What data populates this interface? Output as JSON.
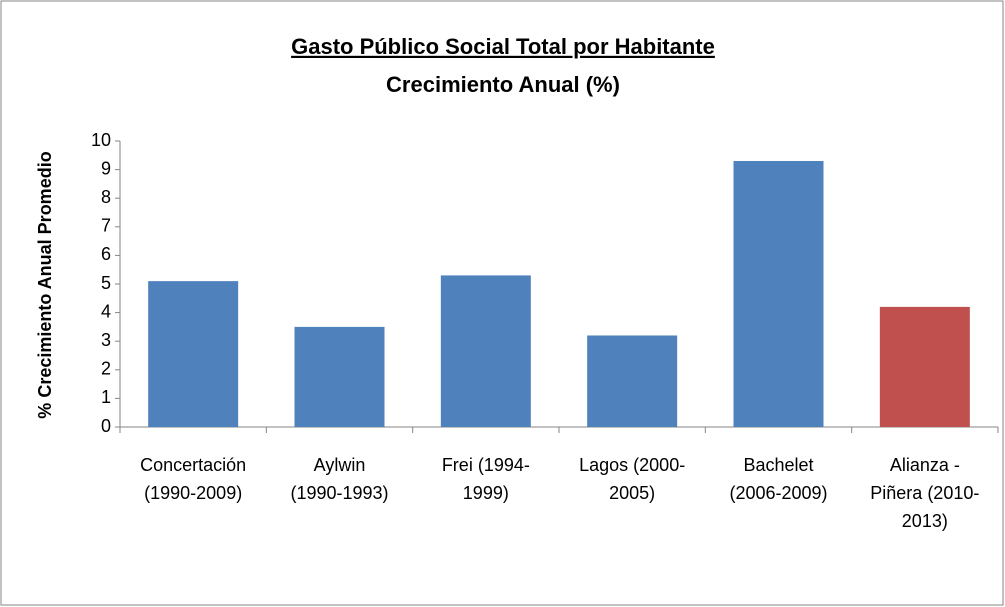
{
  "chart_data": {
    "type": "bar",
    "title": "Gasto Público Social Total por Habitante",
    "subtitle": "Crecimiento Anual (%)",
    "y_label": "% Crecimiento Anual Promedio",
    "categories": [
      [
        "Concertación",
        "(1990-2009)"
      ],
      [
        "Aylwin",
        "(1990-1993)"
      ],
      [
        "Frei  (1994-",
        "1999)"
      ],
      [
        "Lagos (2000-",
        "2005)"
      ],
      [
        "Bachelet",
        "(2006-2009)"
      ],
      [
        "Alianza -",
        "Piñera (2010-",
        "2013)"
      ]
    ],
    "values": [
      5.1,
      3.5,
      5.3,
      3.2,
      9.3,
      4.2
    ],
    "colors": [
      "#4f81bd",
      "#4f81bd",
      "#4f81bd",
      "#4f81bd",
      "#4f81bd",
      "#c0504d"
    ],
    "ylim": [
      0,
      10
    ],
    "yticks": [
      0,
      1,
      2,
      3,
      4,
      5,
      6,
      7,
      8,
      9,
      10
    ],
    "grid": false
  }
}
